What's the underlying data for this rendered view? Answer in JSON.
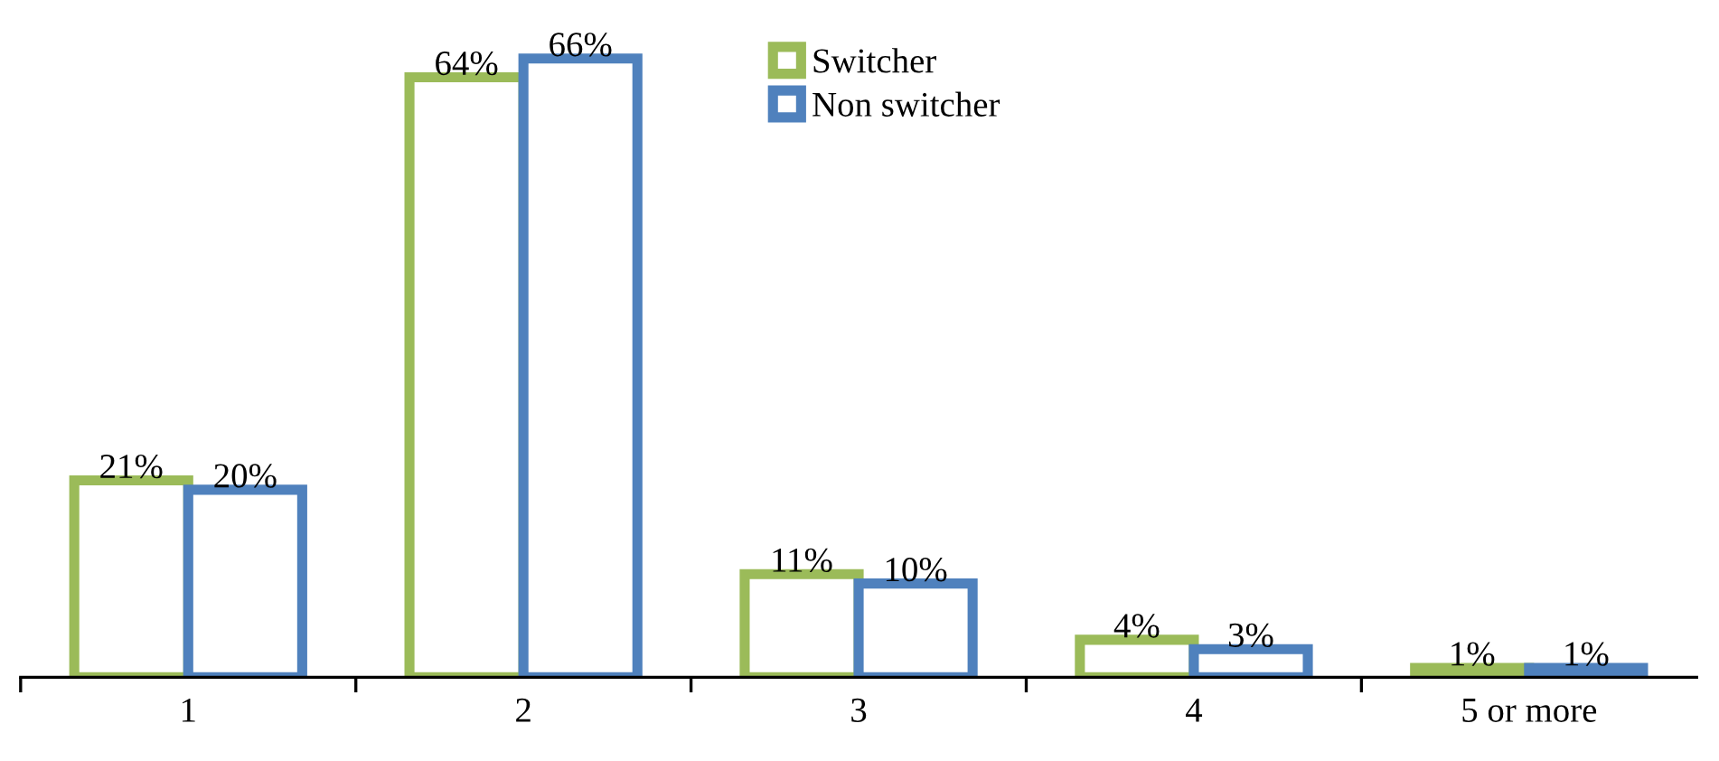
{
  "chart_data": {
    "type": "bar",
    "categories": [
      "1",
      "2",
      "3",
      "4",
      "5 or more"
    ],
    "series": [
      {
        "name": "Switcher",
        "color": "#9bbb59",
        "values": [
          21,
          64,
          11,
          4,
          1
        ],
        "value_labels": [
          "21%",
          "64%",
          "11%",
          "4%",
          "1%"
        ]
      },
      {
        "name": "Non switcher",
        "color": "#4f81bd",
        "values": [
          20,
          66,
          10,
          3,
          1
        ],
        "value_labels": [
          "20%",
          "66%",
          "10%",
          "3%",
          "1%"
        ]
      }
    ],
    "legend": "top"
  }
}
